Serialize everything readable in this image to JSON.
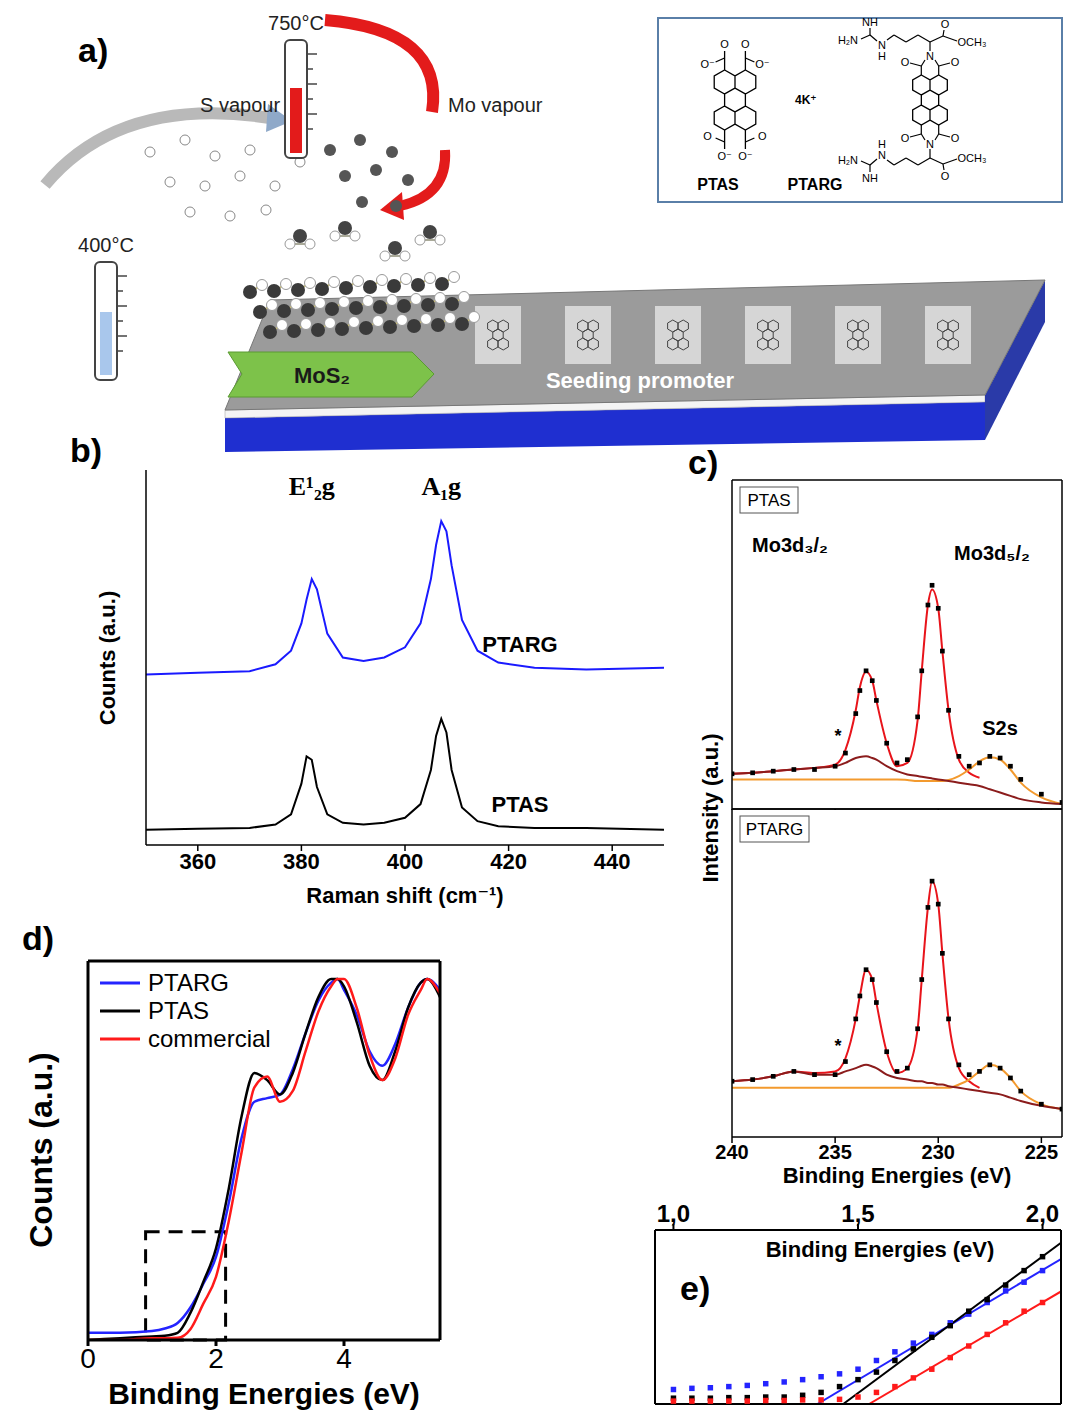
{
  "diagram": {
    "panel": "a)",
    "thermometers": [
      "750°C",
      "400°C"
    ],
    "vapours": [
      "S vapour",
      "Mo vapour"
    ],
    "film": "MoS₂",
    "substrate": "Seeding promoter",
    "molecules": [
      {
        "name": "PTAS",
        "counterion": "4K⁺",
        "atom_labels": [
          "O",
          "O⁻",
          "O",
          "O⁻",
          "O⁻",
          "O",
          "O⁻",
          "O"
        ]
      },
      {
        "name": "PTARG",
        "atom_labels_top": [
          "NH",
          "H₂N",
          "N",
          "H",
          "O",
          "OCH₃",
          "O",
          "N",
          "O"
        ],
        "atom_labels_bottom": [
          "NH",
          "H₂N",
          "N",
          "H",
          "O",
          "OCH₃",
          "O",
          "N",
          "O"
        ]
      }
    ]
  },
  "chart_data": [
    {
      "panel": "b)",
      "type": "line",
      "x_label": "Raman shift (cm⁻¹)",
      "y_label": "Counts (a.u.)",
      "xlim": [
        350,
        450
      ],
      "xticks": [
        360,
        380,
        400,
        420,
        440
      ],
      "ylim": [
        0,
        11
      ],
      "tick_labels": "x",
      "annotations": [
        {
          "text": "E¹₂g",
          "x": 382
        },
        {
          "text": "A₁g",
          "x": 407
        }
      ],
      "x": [
        350,
        360,
        370,
        375,
        378,
        380,
        381,
        382,
        383,
        385,
        388,
        392,
        396,
        400,
        403,
        405,
        406,
        407,
        408,
        409,
        411,
        414,
        418,
        425,
        435,
        450
      ],
      "series": [
        {
          "name": "PTARG",
          "color": "#1a1aff",
          "values": [
            5.0,
            5.05,
            5.1,
            5.3,
            5.7,
            6.5,
            7.2,
            7.8,
            7.5,
            6.2,
            5.5,
            5.4,
            5.5,
            5.8,
            6.5,
            7.8,
            8.8,
            9.5,
            9.2,
            8.2,
            6.6,
            5.7,
            5.35,
            5.2,
            5.15,
            5.2
          ]
        },
        {
          "name": "PTAS",
          "color": "#000000",
          "values": [
            0.45,
            0.48,
            0.5,
            0.6,
            0.9,
            1.8,
            2.6,
            2.5,
            1.7,
            0.9,
            0.65,
            0.6,
            0.65,
            0.8,
            1.2,
            2.2,
            3.2,
            3.7,
            3.3,
            2.2,
            1.1,
            0.7,
            0.55,
            0.5,
            0.5,
            0.45
          ]
        }
      ]
    },
    {
      "panel": "c)",
      "type": "line",
      "title": "PTAS",
      "y_label": "Intensity (a.u.)",
      "xlim": [
        240,
        224
      ],
      "xticks": [
        240,
        235,
        230,
        225
      ],
      "ylim": [
        0,
        10
      ],
      "tick_labels": false,
      "annotations": [
        "Mo3d₃/₂",
        "Mo3d₅/₂",
        "S2s",
        "*"
      ],
      "x": [
        240,
        239,
        238,
        237,
        236,
        235,
        234.5,
        234,
        233.8,
        233.5,
        233.2,
        233,
        232.5,
        232,
        231.5,
        231,
        230.8,
        230.5,
        230.3,
        230,
        229.8,
        229.5,
        229,
        228.5,
        228,
        227.5,
        227,
        226.5,
        226,
        225,
        224
      ],
      "series": [
        {
          "type": "scatter",
          "marker": "square",
          "color": "#000000",
          "values": [
            1.07,
            1.1,
            1.15,
            1.2,
            1.2,
            1.3,
            1.7,
            2.9,
            3.6,
            4.2,
            3.9,
            3.3,
            2.0,
            1.4,
            1.5,
            2.8,
            4.2,
            6.2,
            6.8,
            6.1,
            4.8,
            3.0,
            1.6,
            1.3,
            1.4,
            1.6,
            1.55,
            1.3,
            0.9,
            0.45,
            0.2
          ]
        },
        {
          "type": "line",
          "color": "#e8141b",
          "values": [
            1.07,
            1.1,
            1.15,
            1.2,
            1.25,
            1.35,
            1.8,
            3.0,
            3.7,
            4.17,
            3.9,
            3.3,
            2.0,
            1.3,
            1.4,
            2.7,
            4.2,
            6.2,
            6.67,
            6.1,
            4.8,
            3.0,
            1.5,
            1.1,
            0.95,
            null,
            null,
            null,
            null,
            null,
            null
          ]
        },
        {
          "type": "line",
          "color": "#f39a2e",
          "values": [
            0.9,
            0.9,
            0.9,
            0.9,
            0.9,
            0.9,
            0.9,
            0.9,
            0.9,
            0.9,
            0.9,
            0.9,
            0.9,
            0.9,
            0.88,
            0.85,
            0.85,
            0.85,
            0.85,
            0.85,
            0.85,
            0.88,
            1.0,
            1.2,
            1.45,
            1.57,
            1.5,
            1.2,
            0.8,
            0.35,
            0.15
          ]
        },
        {
          "type": "line",
          "color": "#8b1c1c",
          "values": [
            1.07,
            1.1,
            1.15,
            1.2,
            1.25,
            1.3,
            1.4,
            1.55,
            1.58,
            1.6,
            1.55,
            1.5,
            1.3,
            1.15,
            1.05,
            1.0,
            0.98,
            0.95,
            0.93,
            0.9,
            0.88,
            0.85,
            0.8,
            0.75,
            0.7,
            0.6,
            0.5,
            0.4,
            0.3,
            0.2,
            0.15
          ]
        }
      ]
    },
    {
      "type": "line",
      "title": "PTARG",
      "x_label": "Binding Energies (eV)",
      "xlim": [
        240,
        224
      ],
      "xticks": [
        240,
        235,
        230,
        225
      ],
      "ylim": [
        0,
        10
      ],
      "tick_labels": "x",
      "annotations": [
        "*"
      ],
      "x": [
        240,
        239,
        238,
        237,
        236,
        235,
        234.5,
        234,
        233.8,
        233.5,
        233.2,
        233,
        232.5,
        232,
        231.5,
        231,
        230.8,
        230.5,
        230.3,
        230,
        229.8,
        229.5,
        229,
        228.5,
        228,
        227.5,
        227,
        226.5,
        226,
        225,
        224
      ],
      "series": [
        {
          "type": "scatter",
          "marker": "square",
          "color": "#000000",
          "values": [
            1.7,
            1.75,
            1.85,
            2.0,
            1.9,
            1.9,
            2.3,
            3.6,
            4.3,
            5.1,
            4.8,
            4.1,
            2.6,
            2.0,
            2.1,
            3.3,
            4.8,
            7.0,
            7.8,
            7.1,
            5.6,
            3.6,
            2.2,
            1.9,
            2.0,
            2.2,
            2.1,
            1.8,
            1.4,
            1.0,
            0.85
          ]
        },
        {
          "type": "line",
          "color": "#e8141b",
          "values": [
            1.7,
            1.75,
            1.85,
            2.0,
            1.95,
            2.0,
            2.4,
            3.6,
            4.3,
            5.1,
            4.8,
            4.1,
            2.6,
            1.95,
            2.1,
            3.3,
            4.8,
            7.0,
            7.8,
            7.1,
            5.6,
            3.6,
            2.1,
            1.7,
            1.5,
            null,
            null,
            null,
            null,
            null,
            null
          ]
        },
        {
          "type": "line",
          "color": "#f39a2e",
          "values": [
            1.5,
            1.5,
            1.5,
            1.5,
            1.5,
            1.5,
            1.5,
            1.5,
            1.5,
            1.5,
            1.5,
            1.5,
            1.5,
            1.5,
            1.5,
            1.5,
            1.5,
            1.5,
            1.5,
            1.5,
            1.5,
            1.5,
            1.6,
            1.75,
            2.0,
            2.2,
            2.1,
            1.8,
            1.4,
            1.0,
            0.85
          ]
        },
        {
          "type": "line",
          "color": "#8b1c1c",
          "values": [
            1.7,
            1.75,
            1.85,
            2.0,
            1.9,
            1.9,
            2.0,
            2.1,
            2.15,
            2.2,
            2.15,
            2.1,
            1.9,
            1.8,
            1.75,
            1.7,
            1.7,
            1.65,
            1.65,
            1.6,
            1.6,
            1.55,
            1.5,
            1.45,
            1.4,
            1.35,
            1.3,
            1.2,
            1.1,
            0.95,
            0.85
          ]
        }
      ]
    },
    {
      "panel": "d)",
      "type": "line",
      "x_label": "Binding Energies (eV)",
      "y_label": "Counts (a.u.)",
      "xlim": [
        0,
        5.5
      ],
      "xticks": [
        0,
        2,
        4
      ],
      "ylim": [
        0,
        1.05
      ],
      "tick_labels": "x",
      "legend": "top-left",
      "zoom_box": {
        "x": [
          0.9,
          2.15
        ],
        "y": [
          0,
          0.3
        ]
      },
      "x": [
        0,
        0.5,
        1.0,
        1.2,
        1.4,
        1.6,
        1.8,
        2.0,
        2.2,
        2.4,
        2.6,
        2.8,
        3.0,
        3.2,
        3.4,
        3.6,
        3.8,
        3.9,
        4.0,
        4.2,
        4.4,
        4.6,
        4.8,
        5.0,
        5.2,
        5.3,
        5.5
      ],
      "series": [
        {
          "name": "PTARG",
          "color": "#2424ff",
          "values": [
            0.02,
            0.02,
            0.025,
            0.032,
            0.047,
            0.09,
            0.155,
            0.23,
            0.38,
            0.56,
            0.66,
            0.67,
            0.68,
            0.75,
            0.85,
            0.94,
            0.99,
            1.0,
            0.97,
            0.9,
            0.8,
            0.76,
            0.82,
            0.92,
            0.99,
            1.0,
            0.97
          ]
        },
        {
          "name": "PTAS",
          "color": "#000000",
          "values": [
            0.0,
            0.005,
            0.01,
            0.012,
            0.02,
            0.075,
            0.16,
            0.254,
            0.42,
            0.62,
            0.74,
            0.72,
            0.68,
            0.74,
            0.85,
            0.95,
            1.0,
            1.0,
            0.98,
            0.88,
            0.76,
            0.72,
            0.8,
            0.92,
            0.99,
            1.0,
            0.95
          ]
        },
        {
          "name": "commercial",
          "color": "#ff1a1a",
          "values": [
            0.0,
            0.0,
            0.005,
            0.005,
            0.006,
            0.03,
            0.1,
            0.175,
            0.33,
            0.52,
            0.7,
            0.73,
            0.66,
            0.69,
            0.8,
            0.91,
            0.98,
            1.0,
            1.0,
            0.92,
            0.79,
            0.72,
            0.78,
            0.9,
            0.97,
            1.0,
            0.96
          ]
        }
      ]
    },
    {
      "panel": "e)",
      "type": "scatter",
      "x_label": "Binding Energies (eV)",
      "xlim": [
        0.95,
        2.05
      ],
      "xticks": [
        {
          "value": 1.0,
          "label": "1,0"
        },
        {
          "value": 1.5,
          "label": "1,5"
        },
        {
          "value": 2.0,
          "label": "2,0"
        }
      ],
      "ylim": [
        0,
        0.3
      ],
      "tick_labels": "x",
      "x": [
        1.0,
        1.05,
        1.1,
        1.15,
        1.2,
        1.25,
        1.3,
        1.35,
        1.4,
        1.45,
        1.5,
        1.55,
        1.6,
        1.65,
        1.7,
        1.75,
        1.8,
        1.85,
        1.9,
        1.95,
        2.0
      ],
      "series": [
        {
          "type": "scatter",
          "marker": "square",
          "color": "#2424ff",
          "values": [
            0.025,
            0.027,
            0.028,
            0.03,
            0.032,
            0.035,
            0.038,
            0.042,
            0.047,
            0.052,
            0.06,
            0.075,
            0.09,
            0.105,
            0.12,
            0.14,
            0.155,
            0.175,
            0.195,
            0.21,
            0.23
          ]
        },
        {
          "type": "scatter",
          "marker": "square",
          "color": "#000000",
          "values": [
            0.01,
            0.01,
            0.01,
            0.011,
            0.011,
            0.012,
            0.012,
            0.015,
            0.02,
            0.03,
            0.042,
            0.055,
            0.075,
            0.095,
            0.115,
            0.135,
            0.16,
            0.18,
            0.205,
            0.23,
            0.254
          ]
        },
        {
          "type": "scatter",
          "marker": "square",
          "color": "#ff1a1a",
          "values": [
            0.005,
            0.005,
            0.005,
            0.005,
            0.005,
            0.006,
            0.006,
            0.007,
            0.007,
            0.008,
            0.012,
            0.02,
            0.03,
            0.045,
            0.06,
            0.08,
            0.1,
            0.12,
            0.14,
            0.16,
            0.175
          ]
        },
        {
          "type": "line",
          "color": "#2424ff",
          "x": [
            1.39,
            2.05
          ],
          "values": [
            0,
            0.25
          ]
        },
        {
          "type": "line",
          "color": "#000000",
          "x": [
            1.46,
            2.05
          ],
          "values": [
            0,
            0.278
          ]
        },
        {
          "type": "line",
          "color": "#ff1a1a",
          "x": [
            1.53,
            2.05
          ],
          "values": [
            0,
            0.194
          ]
        }
      ]
    }
  ]
}
